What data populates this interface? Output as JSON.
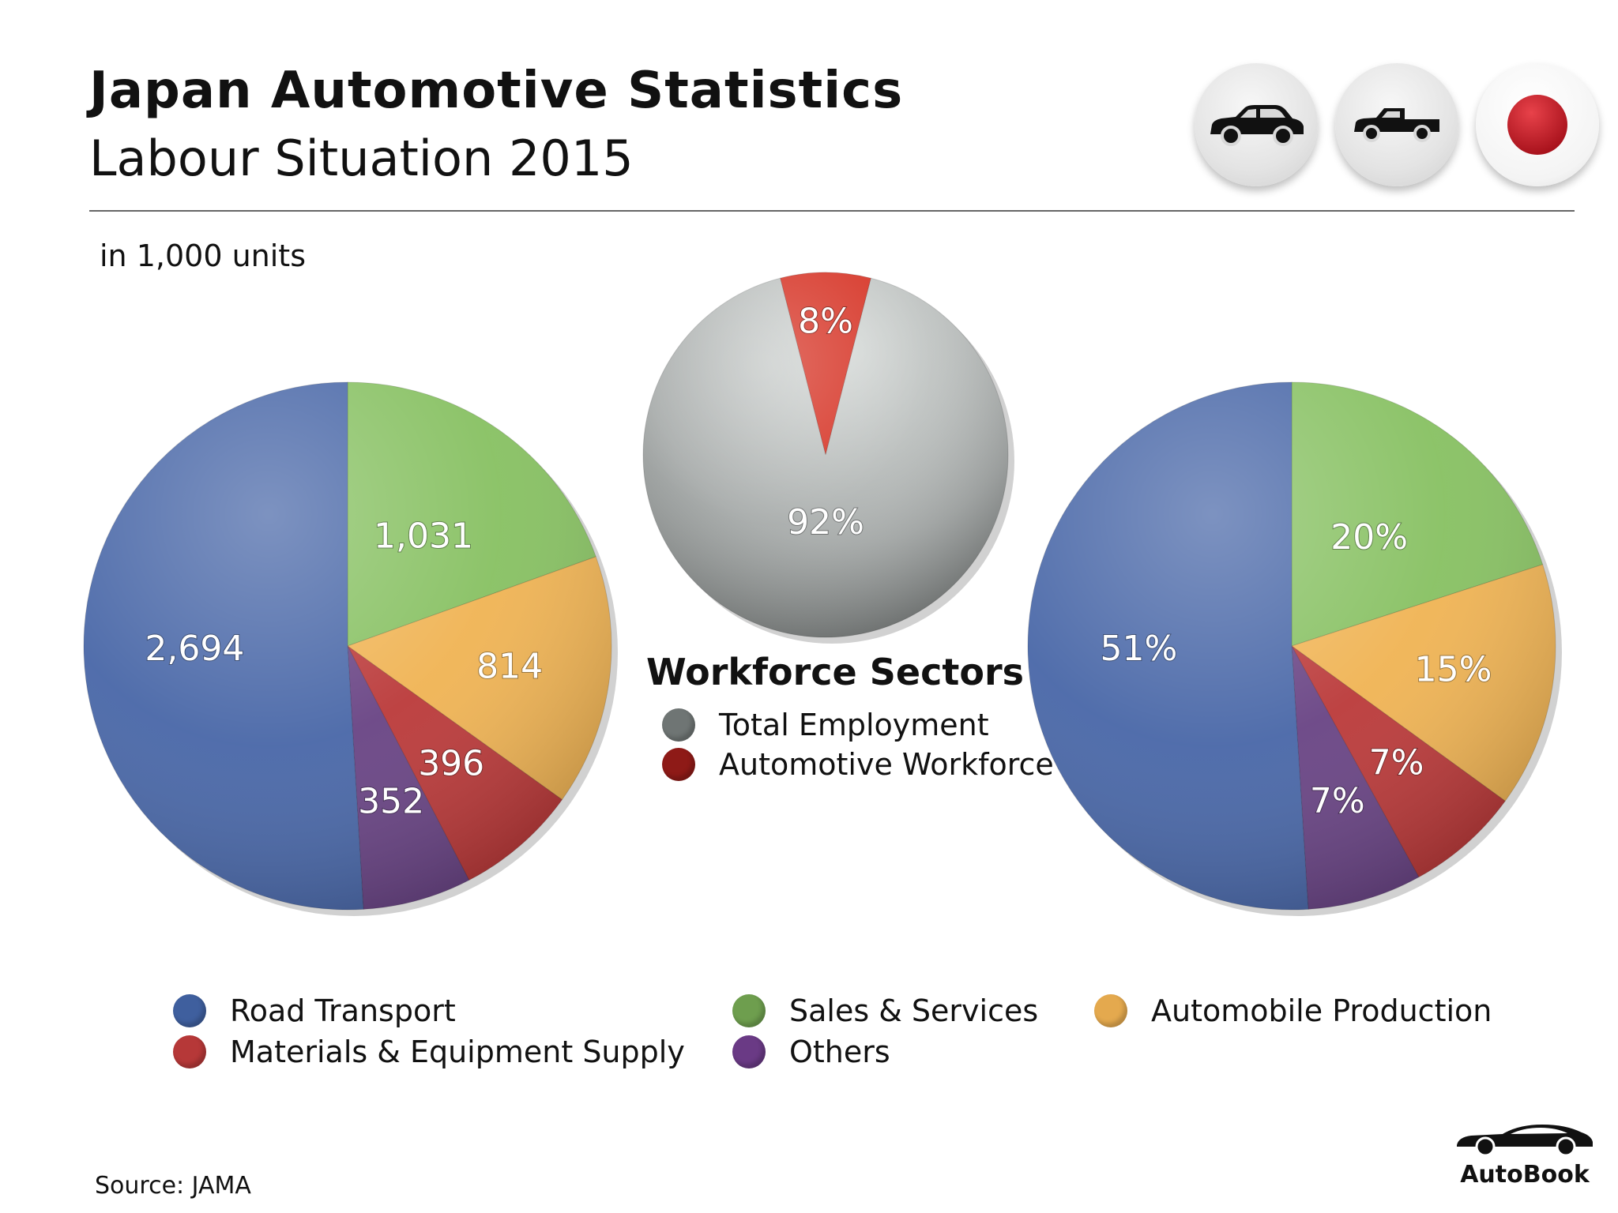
{
  "header": {
    "title": "Japan Automotive Statistics",
    "subtitle": "Labour Situation 2015",
    "units": "in 1,000 units"
  },
  "badges": [
    {
      "icon": "car-icon"
    },
    {
      "icon": "pickup-truck-icon"
    },
    {
      "icon": "japan-flag-icon"
    }
  ],
  "colors": {
    "road_transport": "#4a68a8",
    "sales_services": "#88c163",
    "automobile_production": "#f0b455",
    "materials_supply": "#bb3b3b",
    "others": "#6a4585",
    "total_employment": "#a8acaa",
    "automotive_workforce": "#d63325"
  },
  "chart_data": [
    {
      "type": "pie",
      "title": "",
      "categories": [
        "Road Transport",
        "Sales & Services",
        "Automobile Production",
        "Materials & Equipment Supply",
        "Others"
      ],
      "values": [
        2694,
        1031,
        814,
        396,
        352
      ],
      "labels": [
        "2,694",
        "1,031",
        "814",
        "396",
        "352"
      ]
    },
    {
      "type": "pie",
      "title": "Workforce Sectors",
      "categories": [
        "Automotive Workforce",
        "Total Employment"
      ],
      "values": [
        8,
        92
      ],
      "labels": [
        "8%",
        "92%"
      ]
    },
    {
      "type": "pie",
      "title": "",
      "categories": [
        "Road Transport",
        "Sales & Services",
        "Automobile Production",
        "Materials & Equipment Supply",
        "Others"
      ],
      "values": [
        51,
        20,
        15,
        7,
        7
      ],
      "labels": [
        "51%",
        "20%",
        "15%",
        "7%",
        "7%"
      ]
    }
  ],
  "workforce_legend": {
    "title": "Workforce Sectors",
    "items": [
      "Total Employment",
      "Automotive Workforce"
    ]
  },
  "legend": {
    "items": [
      "Road Transport",
      "Materials & Equipment Supply",
      "Sales & Services",
      "Others",
      "Automobile Production"
    ]
  },
  "footer": {
    "source": "Source:  JAMA",
    "logo": "AutoBook"
  }
}
